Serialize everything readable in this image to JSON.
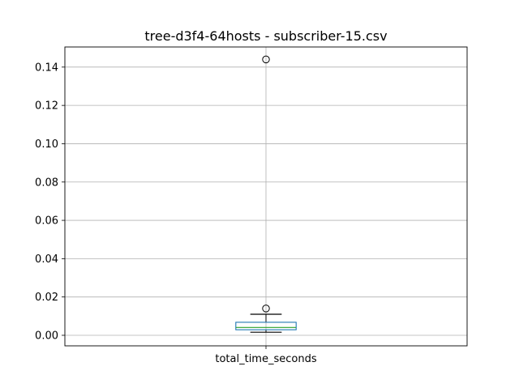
{
  "chart_data": {
    "type": "box",
    "title": "tree-d3f4-64hosts - subscriber-15.csv",
    "categories": [
      "total_time_seconds"
    ],
    "xlabel": "",
    "ylabel": "",
    "ylim": [
      -0.0055,
      0.1505
    ],
    "y_ticks": [
      0.0,
      0.02,
      0.04,
      0.06,
      0.08,
      0.1,
      0.12,
      0.14
    ],
    "y_tick_labels": [
      "0.00",
      "0.02",
      "0.04",
      "0.06",
      "0.08",
      "0.10",
      "0.12",
      "0.14"
    ],
    "grid": true,
    "boxes": [
      {
        "category": "total_time_seconds",
        "whisker_low": 0.0016,
        "q1": 0.0029,
        "median": 0.0041,
        "q3": 0.0068,
        "whisker_high": 0.011,
        "outliers": [
          0.014,
          0.144
        ]
      }
    ],
    "colors": {
      "box": "#1f77b4",
      "median": "#2ca02c",
      "whisker": "#000000",
      "grid": "#b0b0b0"
    }
  }
}
